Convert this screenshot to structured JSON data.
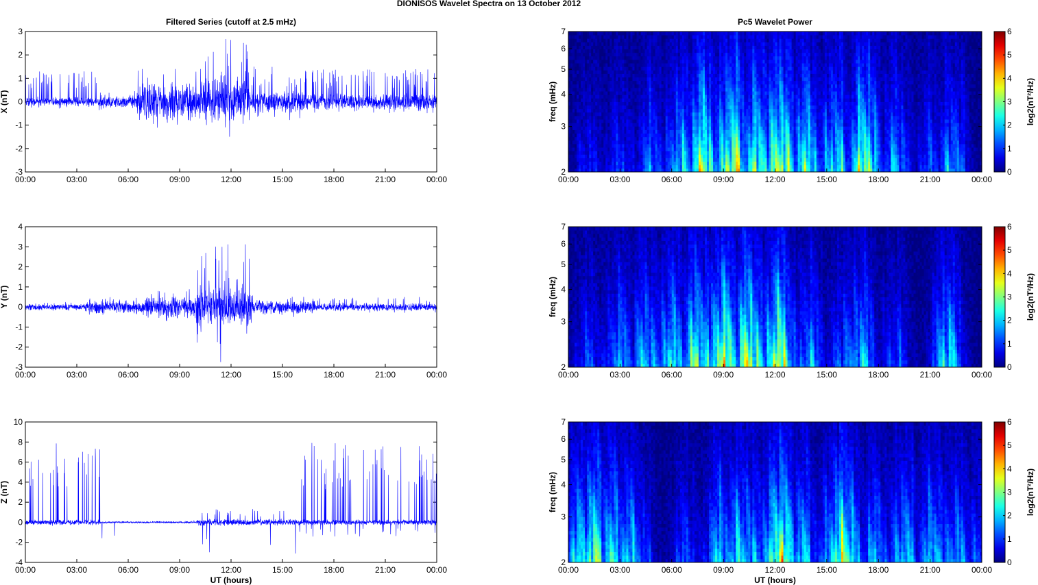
{
  "figure_title": "DIONISOS Wavelet Spectra on 13 October   2012",
  "chart_data": [
    {
      "type": "line",
      "title": "Filtered Series (cutoff at 2.5 mHz)",
      "ylabel": "X (nT)",
      "xlabel": "",
      "xlim": [
        0,
        24
      ],
      "ylim": [
        -3,
        3
      ],
      "xticks": [
        "00:00",
        "03:00",
        "06:00",
        "09:00",
        "12:00",
        "15:00",
        "18:00",
        "21:00",
        "00:00"
      ],
      "yticks": [
        "-3",
        "-2",
        "-1",
        "0",
        "1",
        "2",
        "3"
      ],
      "line_color": "#0000ff",
      "envelope": [
        {
          "start": 0,
          "end": 4.3,
          "amp": 0.15,
          "spike_up": 1.3,
          "spike_down": 0.3,
          "spike_rate": 12
        },
        {
          "start": 4.3,
          "end": 6.5,
          "amp": 0.2,
          "spike_up": 0.5,
          "spike_down": 0.4,
          "spike_rate": 2
        },
        {
          "start": 6.5,
          "end": 10.5,
          "amp": 0.6,
          "spike_up": 1.4,
          "spike_down": 1.2,
          "spike_rate": 6
        },
        {
          "start": 10.5,
          "end": 13.0,
          "amp": 0.8,
          "spike_up": 2.7,
          "spike_down": 2.3,
          "spike_rate": 8
        },
        {
          "start": 13.0,
          "end": 16.5,
          "amp": 0.35,
          "spike_up": 1.5,
          "spike_down": 0.8,
          "spike_rate": 8
        },
        {
          "start": 16.5,
          "end": 24,
          "amp": 0.25,
          "spike_up": 1.4,
          "spike_down": 0.5,
          "spike_rate": 12
        }
      ],
      "seed": 11
    },
    {
      "type": "line",
      "title": "",
      "ylabel": "Y (nT)",
      "xlabel": "",
      "xlim": [
        0,
        24
      ],
      "ylim": [
        -3,
        4
      ],
      "xticks": [
        "00:00",
        "03:00",
        "06:00",
        "09:00",
        "12:00",
        "15:00",
        "18:00",
        "21:00",
        "00:00"
      ],
      "yticks": [
        "-3",
        "-2",
        "-1",
        "0",
        "1",
        "2",
        "3",
        "4"
      ],
      "line_color": "#0000ff",
      "envelope": [
        {
          "start": 0,
          "end": 3.5,
          "amp": 0.12,
          "spike_up": 0.25,
          "spike_down": 0.2,
          "spike_rate": 3
        },
        {
          "start": 3.5,
          "end": 7.0,
          "amp": 0.25,
          "spike_up": 0.5,
          "spike_down": 0.45,
          "spike_rate": 4
        },
        {
          "start": 7.0,
          "end": 10.0,
          "amp": 0.4,
          "spike_up": 0.9,
          "spike_down": 0.8,
          "spike_rate": 5
        },
        {
          "start": 10.0,
          "end": 13.2,
          "amp": 0.8,
          "spike_up": 3.2,
          "spike_down": 2.8,
          "spike_rate": 8
        },
        {
          "start": 13.2,
          "end": 17.0,
          "amp": 0.25,
          "spike_up": 0.6,
          "spike_down": 0.5,
          "spike_rate": 4
        },
        {
          "start": 17.0,
          "end": 24,
          "amp": 0.15,
          "spike_up": 0.5,
          "spike_down": 0.4,
          "spike_rate": 4
        }
      ],
      "seed": 23
    },
    {
      "type": "line",
      "title": "",
      "ylabel": "Z (nT)",
      "xlabel": "UT (hours)",
      "xlim": [
        0,
        24
      ],
      "ylim": [
        -4,
        10
      ],
      "xticks": [
        "00:00",
        "03:00",
        "06:00",
        "09:00",
        "12:00",
        "15:00",
        "18:00",
        "21:00",
        "00:00"
      ],
      "yticks": [
        "-4",
        "-2",
        "0",
        "2",
        "4",
        "6",
        "8",
        "10"
      ],
      "line_color": "#0000ff",
      "envelope": [
        {
          "start": 0,
          "end": 4.4,
          "amp": 0.2,
          "spike_up": 8.0,
          "spike_down": 0.4,
          "spike_rate": 9
        },
        {
          "start": 4.4,
          "end": 10.0,
          "amp": 0.08,
          "spike_up": 0.2,
          "spike_down": 2.8,
          "spike_rate": 1
        },
        {
          "start": 10.0,
          "end": 16.0,
          "amp": 0.25,
          "spike_up": 1.4,
          "spike_down": 3.2,
          "spike_rate": 5
        },
        {
          "start": 16.0,
          "end": 24,
          "amp": 0.2,
          "spike_up": 8.0,
          "spike_down": 1.5,
          "spike_rate": 10
        }
      ],
      "seed": 37
    },
    {
      "type": "heatmap",
      "title": "Pc5 Wavelet Power",
      "ylabel": "freq (mHz)",
      "xlabel": "",
      "xlim": [
        0,
        24
      ],
      "ylim": [
        2,
        7
      ],
      "y_scale": "log",
      "xticks": [
        "00:00",
        "03:00",
        "06:00",
        "09:00",
        "12:00",
        "15:00",
        "18:00",
        "21:00",
        "00:00"
      ],
      "yticks": [
        {
          "v": 2,
          "t": "2"
        },
        {
          "v": 3,
          "t": "3"
        },
        {
          "v": 4,
          "t": "4"
        },
        {
          "v": 5,
          "t": "5"
        },
        {
          "v": 6,
          "t": "6"
        },
        {
          "v": 7,
          "t": "7"
        }
      ],
      "colormap": "jet",
      "clim": [
        0,
        6
      ],
      "colorbar_ticks": [
        "0",
        "1",
        "2",
        "3",
        "4",
        "5",
        "6"
      ],
      "colorbar_label": "log2(nT²/Hz)",
      "activity": [
        {
          "t": 1.2,
          "level": 1.5
        },
        {
          "t": 3.0,
          "level": 1.8
        },
        {
          "t": 4.8,
          "level": 2.5
        },
        {
          "t": 6.5,
          "level": 3.5
        },
        {
          "t": 7.8,
          "level": 5.5
        },
        {
          "t": 9.5,
          "level": 6.0
        },
        {
          "t": 11.0,
          "level": 5.0
        },
        {
          "t": 12.3,
          "level": 6.0
        },
        {
          "t": 13.8,
          "level": 4.5
        },
        {
          "t": 15.5,
          "level": 4.0
        },
        {
          "t": 17.2,
          "level": 5.5
        },
        {
          "t": 19.0,
          "level": 3.0
        },
        {
          "t": 21.0,
          "level": 2.0
        },
        {
          "t": 22.3,
          "level": 3.0
        }
      ],
      "seed": 51
    },
    {
      "type": "heatmap",
      "title": "",
      "ylabel": "freq (mHz)",
      "xlabel": "",
      "xlim": [
        0,
        24
      ],
      "ylim": [
        2,
        7
      ],
      "y_scale": "log",
      "xticks": [
        "00:00",
        "03:00",
        "06:00",
        "09:00",
        "12:00",
        "15:00",
        "18:00",
        "21:00",
        "00:00"
      ],
      "yticks": [
        {
          "v": 2,
          "t": "2"
        },
        {
          "v": 3,
          "t": "3"
        },
        {
          "v": 4,
          "t": "4"
        },
        {
          "v": 5,
          "t": "5"
        },
        {
          "v": 6,
          "t": "6"
        },
        {
          "v": 7,
          "t": "7"
        }
      ],
      "colormap": "jet",
      "clim": [
        0,
        6
      ],
      "colorbar_ticks": [
        "0",
        "1",
        "2",
        "3",
        "4",
        "5",
        "6"
      ],
      "colorbar_label": "log2(nT²/Hz)",
      "activity": [
        {
          "t": 1.2,
          "level": 2.0
        },
        {
          "t": 3.0,
          "level": 3.0
        },
        {
          "t": 4.5,
          "level": 3.5
        },
        {
          "t": 6.0,
          "level": 4.0
        },
        {
          "t": 7.5,
          "level": 5.0
        },
        {
          "t": 9.0,
          "level": 6.0
        },
        {
          "t": 10.5,
          "level": 6.0
        },
        {
          "t": 12.2,
          "level": 6.0
        },
        {
          "t": 14.0,
          "level": 3.0
        },
        {
          "t": 16.0,
          "level": 2.5
        },
        {
          "t": 17.0,
          "level": 3.5
        },
        {
          "t": 19.0,
          "level": 2.0
        },
        {
          "t": 22.0,
          "level": 4.0
        }
      ],
      "seed": 67
    },
    {
      "type": "heatmap",
      "title": "",
      "ylabel": "freq (mHz)",
      "xlabel": "UT (hours)",
      "xlim": [
        0,
        24
      ],
      "ylim": [
        2,
        7
      ],
      "y_scale": "log",
      "xticks": [
        "00:00",
        "03:00",
        "06:00",
        "09:00",
        "12:00",
        "15:00",
        "18:00",
        "21:00",
        "00:00"
      ],
      "yticks": [
        {
          "v": 2,
          "t": "2"
        },
        {
          "v": 3,
          "t": "3"
        },
        {
          "v": 4,
          "t": "4"
        },
        {
          "v": 5,
          "t": "5"
        },
        {
          "v": 6,
          "t": "6"
        },
        {
          "v": 7,
          "t": "7"
        }
      ],
      "colormap": "jet",
      "clim": [
        0,
        6
      ],
      "colorbar_ticks": [
        "0",
        "1",
        "2",
        "3",
        "4",
        "5",
        "6"
      ],
      "colorbar_label": "log2(nT²/Hz)",
      "activity": [
        {
          "t": 0.7,
          "level": 4.0
        },
        {
          "t": 1.5,
          "level": 5.0
        },
        {
          "t": 2.6,
          "level": 4.0
        },
        {
          "t": 3.6,
          "level": 3.5
        },
        {
          "t": 4.2,
          "level": 2.0
        },
        {
          "t": 6.8,
          "level": 2.0
        },
        {
          "t": 8.8,
          "level": 3.5
        },
        {
          "t": 10.0,
          "level": 4.0
        },
        {
          "t": 11.0,
          "level": 3.0
        },
        {
          "t": 12.3,
          "level": 6.0
        },
        {
          "t": 13.6,
          "level": 3.5
        },
        {
          "t": 15.5,
          "level": 4.0
        },
        {
          "t": 16.0,
          "level": 5.5
        },
        {
          "t": 17.8,
          "level": 3.0
        },
        {
          "t": 19.5,
          "level": 3.5
        },
        {
          "t": 21.2,
          "level": 3.5
        },
        {
          "t": 22.5,
          "level": 3.0
        },
        {
          "t": 23.5,
          "level": 2.0
        }
      ],
      "seed": 83
    }
  ]
}
